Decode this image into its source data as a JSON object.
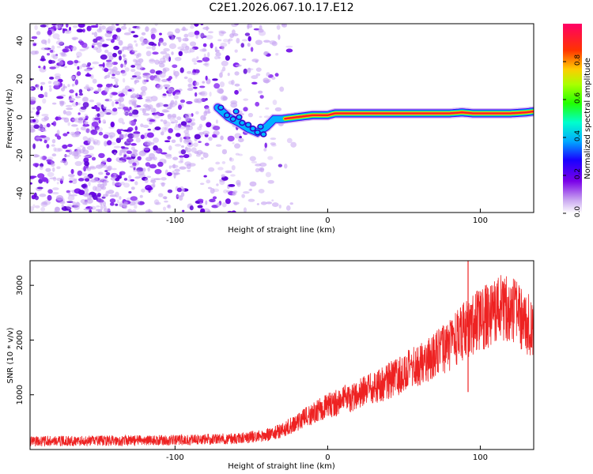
{
  "title": "C2E1.2026.067.10.17.E12",
  "chart_data": [
    {
      "type": "heatmap",
      "xlabel": "Height of straight line (km)",
      "ylabel": "Frequency (Hz)",
      "xlim": [
        -195,
        135
      ],
      "ylim": [
        -50,
        49
      ],
      "xticks": [
        -100,
        0,
        100
      ],
      "yticks": [
        -40,
        -20,
        0,
        20,
        40
      ],
      "echo_trace": {
        "x": [
          -72,
          -65,
          -58,
          -52,
          -46,
          -40,
          -35,
          -30,
          -20,
          -10,
          0,
          5,
          20,
          40,
          60,
          80,
          88,
          95,
          100,
          115,
          120,
          130,
          135
        ],
        "y": [
          5,
          0,
          -3,
          -6,
          -8,
          -5,
          -1,
          -1,
          0,
          1,
          1,
          2,
          2,
          2,
          2,
          2,
          2.5,
          2,
          2,
          2,
          2,
          2.5,
          3
        ]
      },
      "noise_region_x": [
        -195,
        -35
      ],
      "colorbar": {
        "label": "Normalized spectral amplitude",
        "range": [
          0,
          1
        ],
        "ticks": [
          "0.0",
          "0.2",
          "0.4",
          "0.6",
          "0.8"
        ]
      }
    },
    {
      "type": "line",
      "xlabel": "Height of straight line (km)",
      "ylabel": "SNR (10 * v/v)",
      "xlim": [
        -195,
        135
      ],
      "ylim": [
        0,
        3450
      ],
      "xticks": [
        -100,
        0,
        100
      ],
      "yticks": [
        1000,
        2000,
        3000
      ],
      "series": [
        {
          "name": "SNR",
          "color": "#ee2222",
          "x": [
            -195,
            -150,
            -100,
            -60,
            -40,
            -30,
            -20,
            -10,
            0,
            10,
            20,
            40,
            60,
            80,
            88,
            92,
            95,
            100,
            110,
            115,
            120,
            125,
            130,
            135
          ],
          "y": [
            150,
            160,
            170,
            200,
            260,
            350,
            500,
            650,
            800,
            900,
            1000,
            1250,
            1550,
            1900,
            2150,
            2200,
            2300,
            2350,
            2550,
            2600,
            2550,
            2450,
            2300,
            2250
          ],
          "spikes": [
            {
              "x": 92,
              "min": 1050,
              "max": 3450
            }
          ]
        }
      ]
    }
  ]
}
